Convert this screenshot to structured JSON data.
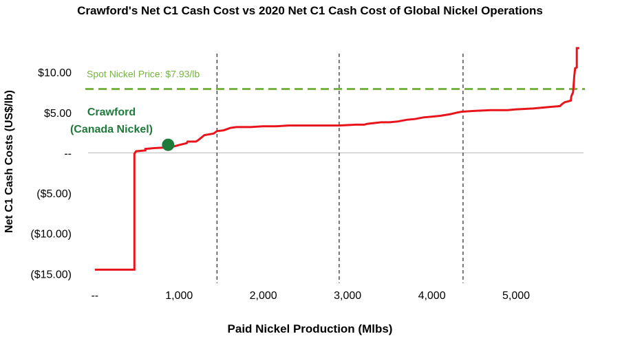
{
  "chart_data": {
    "type": "line",
    "title": "Crawford's Net C1 Cash Cost vs 2020 Net C1 Cash Cost of Global Nickel Operations",
    "xlabel": "Paid Nickel Production (Mlbs)",
    "ylabel": "Net C1 Cash Costs (US$/lb)",
    "xlim": [
      -80,
      5800
    ],
    "ylim": [
      -16,
      13
    ],
    "x_ticks": [
      {
        "value": 0,
        "label": "--"
      },
      {
        "value": 1000,
        "label": "1,000"
      },
      {
        "value": 2000,
        "label": "2,000"
      },
      {
        "value": 3000,
        "label": "3,000"
      },
      {
        "value": 4000,
        "label": "4,000"
      },
      {
        "value": 5000,
        "label": "5,000"
      }
    ],
    "y_ticks": [
      {
        "value": 10,
        "label": "$10.00"
      },
      {
        "value": 5,
        "label": "$5.00"
      },
      {
        "value": 0,
        "label": "--"
      },
      {
        "value": -5,
        "label": "($5.00)"
      },
      {
        "value": -10,
        "label": "($10.00)"
      },
      {
        "value": -15,
        "label": "($15.00)"
      }
    ],
    "grid": false,
    "series": [
      {
        "color": "#e8141b",
        "x": [
          0,
          470,
          470,
          490,
          600,
          600,
          720,
          900,
          1010,
          1090,
          1100,
          1200,
          1230,
          1300,
          1410,
          1450,
          1530,
          1610,
          1680,
          1800,
          1850,
          2000,
          2150,
          2300,
          2500,
          2700,
          2900,
          3100,
          3200,
          3230,
          3400,
          3500,
          3600,
          3700,
          3800,
          3900,
          4000,
          4100,
          4220,
          4300,
          4350,
          4500,
          4700,
          4900,
          5000,
          5200,
          5300,
          5400,
          5520,
          5550,
          5580,
          5620,
          5650,
          5655,
          5675,
          5680,
          5690,
          5700,
          5720,
          5720,
          5750
        ],
        "y": [
          -14.5,
          -14.5,
          -0.1,
          0.2,
          0.3,
          0.5,
          0.6,
          0.7,
          1.0,
          1.2,
          1.4,
          1.4,
          1.6,
          2.2,
          2.4,
          2.7,
          2.8,
          3.1,
          3.2,
          3.2,
          3.2,
          3.3,
          3.3,
          3.4,
          3.4,
          3.4,
          3.4,
          3.5,
          3.5,
          3.6,
          3.8,
          3.8,
          3.9,
          4.1,
          4.2,
          4.4,
          4.5,
          4.6,
          4.8,
          5.0,
          5.1,
          5.2,
          5.3,
          5.3,
          5.4,
          5.5,
          5.6,
          5.7,
          5.8,
          6.1,
          6.3,
          6.4,
          6.5,
          7.0,
          7.5,
          8.0,
          9.5,
          10.5,
          10.6,
          13.0,
          13.0
        ]
      }
    ],
    "reference_line": {
      "y": 7.93,
      "label": "Spot Nickel Price: $7.93/lb",
      "color": "#76b343"
    },
    "vertical_lines": [
      1450,
      2900,
      4370
    ],
    "highlight_point": {
      "x": 870,
      "y": 1.0,
      "label_line1": "Crawford",
      "label_line2": "(Canada Nickel)",
      "color": "#1e7a3a"
    },
    "zero_line_color": "#bfbfbf",
    "colors": {
      "series": "#e8141b",
      "spot": "#76b343",
      "crawford": "#1e7a3a",
      "vlines": "#222222"
    }
  }
}
